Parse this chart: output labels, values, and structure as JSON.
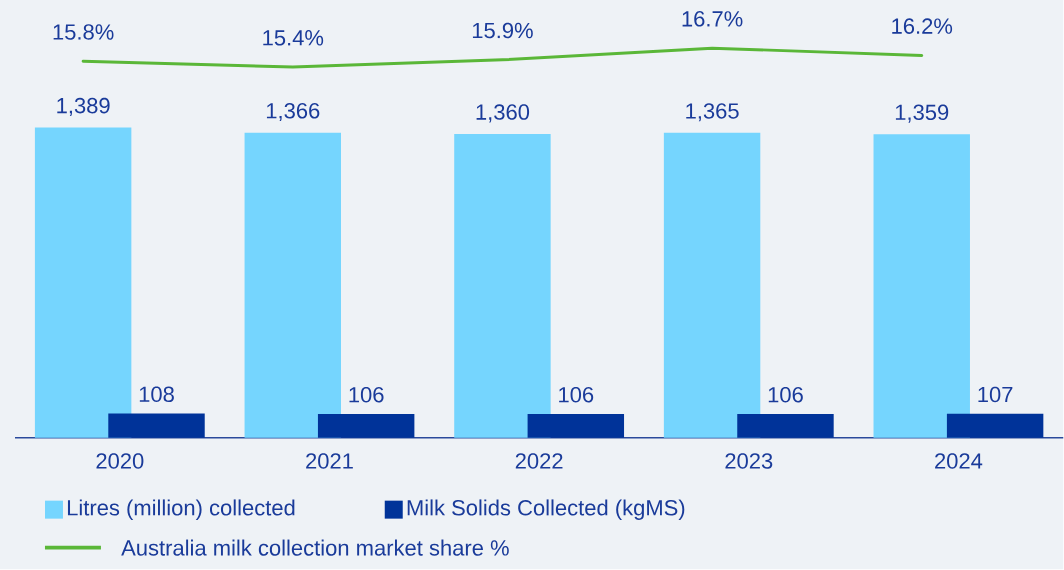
{
  "chart_data": {
    "type": "bar",
    "categories": [
      "2020",
      "2021",
      "2022",
      "2023",
      "2024"
    ],
    "series": [
      {
        "name": "Litres (million) collected",
        "color": "#75d5fe",
        "values": [
          1389,
          1366,
          1360,
          1365,
          1359
        ],
        "value_labels": [
          "1,389",
          "1,366",
          "1,360",
          "1,365",
          "1,359"
        ]
      },
      {
        "name": "Milk Solids Collected (kgMS)",
        "color": "#003399",
        "values": [
          108,
          106,
          106,
          106,
          107
        ],
        "value_labels": [
          "108",
          "106",
          "106",
          "106",
          "107"
        ]
      },
      {
        "name": "Australia milk collection market share %",
        "type": "line",
        "axis": "y2",
        "color": "#5ab738",
        "values": [
          15.8,
          15.4,
          15.9,
          16.7,
          16.2
        ],
        "value_labels": [
          "15.8%",
          "15.4%",
          "15.9%",
          "16.7%",
          "16.2%"
        ]
      }
    ],
    "ylim": [
      0,
      1960
    ],
    "y2lim": [
      -10,
      20
    ],
    "tick_labels": "x",
    "legend": "bottom",
    "marker": "none",
    "line_style": "solid"
  }
}
